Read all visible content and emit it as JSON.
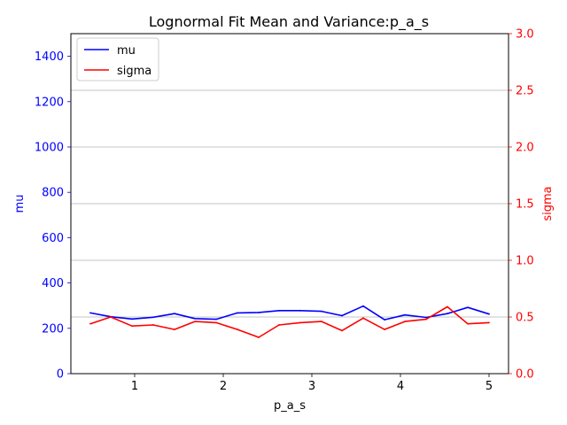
{
  "chart_data": {
    "type": "line",
    "title": "Lognormal Fit Mean and Variance:p_a_s",
    "xlabel": "p_a_s",
    "ylabel_left": "mu",
    "ylabel_right": "sigma",
    "xlim": [
      0.28,
      5.22
    ],
    "ylim_left": [
      0,
      1500
    ],
    "ylim_right": [
      0,
      3.0
    ],
    "x_ticks": [
      1,
      2,
      3,
      4,
      5
    ],
    "y_left_ticks": [
      0,
      200,
      400,
      600,
      800,
      1000,
      1200,
      1400
    ],
    "y_right_ticks": [
      0.0,
      0.5,
      1.0,
      1.5,
      2.0,
      2.5,
      3.0
    ],
    "grid": "horizontal, right axis",
    "legend_position": "top-left",
    "colors": {
      "mu": "#0000ff",
      "sigma": "#ff0000",
      "grid": "#b0b0b0"
    },
    "x": [
      0.5,
      0.73,
      0.97,
      1.21,
      1.45,
      1.68,
      1.92,
      2.16,
      2.4,
      2.63,
      2.87,
      3.11,
      3.34,
      3.58,
      3.82,
      4.05,
      4.29,
      4.53,
      4.76,
      5.0
    ],
    "series": [
      {
        "name": "mu",
        "axis": "left",
        "color": "#0000ff",
        "values": [
          268,
          251,
          241,
          249,
          265,
          243,
          240,
          268,
          270,
          278,
          278,
          275,
          256,
          298,
          238,
          259,
          248,
          265,
          292,
          263
        ]
      },
      {
        "name": "sigma",
        "axis": "right",
        "color": "#ff0000",
        "values": [
          0.44,
          0.5,
          0.42,
          0.43,
          0.39,
          0.46,
          0.45,
          0.39,
          0.32,
          0.43,
          0.45,
          0.46,
          0.38,
          0.49,
          0.39,
          0.46,
          0.48,
          0.59,
          0.44,
          0.45
        ]
      }
    ]
  }
}
